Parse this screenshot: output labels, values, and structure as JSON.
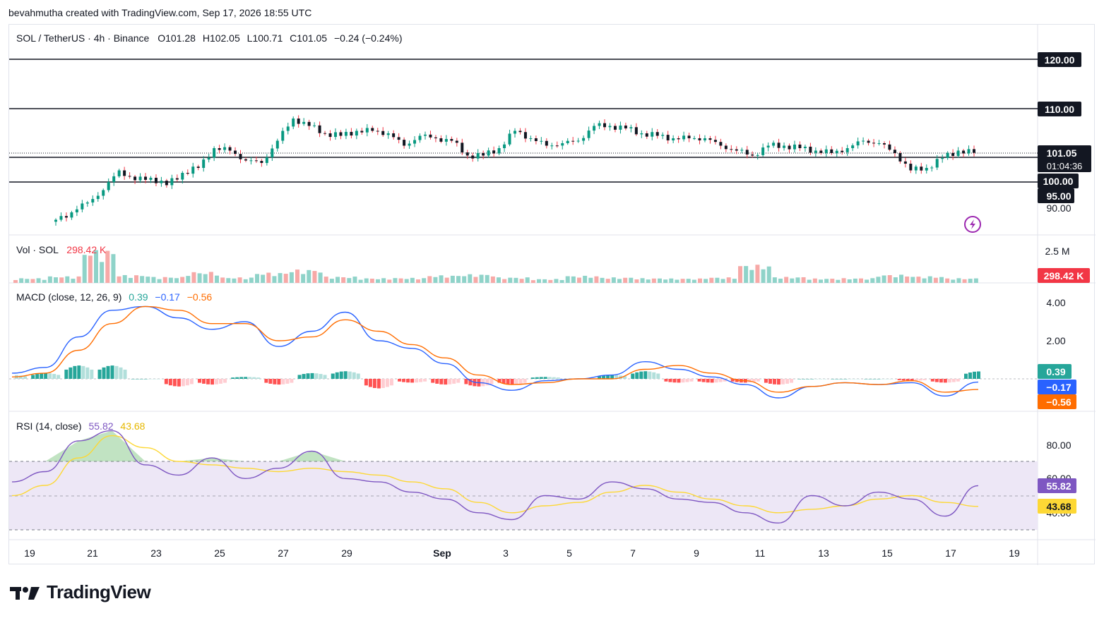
{
  "attribution": "bevahmutha created with TradingView.com, Sep 17, 2026 18:55 UTC",
  "brand": {
    "name": "TradingView"
  },
  "main_legend": {
    "symbol": "SOL / TetherUS · 4h · Binance",
    "open": "O101.28",
    "high": "H102.05",
    "low": "L100.71",
    "close": "C101.05",
    "change": "−0.24 (−0.24%)"
  },
  "price_axis": {
    "labels": [
      "120.00",
      "110.00",
      "101.05",
      "01:04:36",
      "100.00",
      "95.00",
      "90.00"
    ]
  },
  "volume_pane": {
    "title": "Vol · SOL",
    "value": "298.42 K",
    "axis_label": "2.5 M",
    "last_badge": "298.42 K"
  },
  "macd_pane": {
    "title": "MACD (close, 12, 26, 9)",
    "hist": "0.39",
    "macd": "−0.17",
    "signal": "−0.56",
    "axis_labels": [
      "4.00",
      "2.00"
    ],
    "badges": [
      "0.39",
      "−0.17",
      "−0.56"
    ]
  },
  "rsi_pane": {
    "title": "RSI (14, close)",
    "rsi": "55.82",
    "ma": "43.68",
    "axis_labels": [
      "80.00",
      "60.00",
      "40.00"
    ],
    "badges": [
      "55.82",
      "43.68"
    ]
  },
  "time_axis": {
    "labels": [
      "19",
      "21",
      "23",
      "25",
      "27",
      "29",
      "Sep",
      "3",
      "5",
      "7",
      "9",
      "11",
      "13",
      "15",
      "17",
      "19"
    ]
  },
  "colors": {
    "up": "#089981",
    "down": "#f23645",
    "vol_up": "#8fd3c9",
    "vol_down": "#f7a9a7",
    "macd": "#2962ff",
    "signal": "#ff6d00",
    "rsi": "#7e57c2",
    "rsi_ma": "#fdd835",
    "level": "#131722",
    "rsi_band": "#ede7f6"
  },
  "chart_data": [
    {
      "type": "candlestick",
      "title": "SOL / TetherUS · 4h · Binance",
      "x_range": [
        "Aug 19",
        "Sep 19"
      ],
      "ylim": [
        88,
        124
      ],
      "horizontal_levels": [
        120,
        110,
        101,
        96
      ],
      "last": {
        "open": 101.28,
        "high": 102.05,
        "low": 100.71,
        "close": 101.05
      },
      "close_series": [
        {
          "x": "Aug 20",
          "y": 87.5
        },
        {
          "x": "Aug 20 12h",
          "y": 89.0
        },
        {
          "x": "Aug 21",
          "y": 91.0
        },
        {
          "x": "Aug 21 12h",
          "y": 93.5
        },
        {
          "x": "Aug 22",
          "y": 97.5
        },
        {
          "x": "Aug 22 12h",
          "y": 95.5
        },
        {
          "x": "Aug 23",
          "y": 96.0
        },
        {
          "x": "Aug 23 12h",
          "y": 94.5
        },
        {
          "x": "Aug 24",
          "y": 97.0
        },
        {
          "x": "Aug 24 12h",
          "y": 98.0
        },
        {
          "x": "Aug 25",
          "y": 102.0
        },
        {
          "x": "Aug 25 12h",
          "y": 101.5
        },
        {
          "x": "Aug 26",
          "y": 99.5
        },
        {
          "x": "Aug 26 12h",
          "y": 99.0
        },
        {
          "x": "Aug 27",
          "y": 103.5
        },
        {
          "x": "Aug 27 12h",
          "y": 108.0
        },
        {
          "x": "Aug 28",
          "y": 106.5
        },
        {
          "x": "Aug 28 12h",
          "y": 105.0
        },
        {
          "x": "Aug 29",
          "y": 104.5
        },
        {
          "x": "Aug 29 12h",
          "y": 105.5
        },
        {
          "x": "Aug 30",
          "y": 105.5
        },
        {
          "x": "Aug 30 12h",
          "y": 105.0
        },
        {
          "x": "Aug 31",
          "y": 102.5
        },
        {
          "x": "Aug 31 12h",
          "y": 104.5
        },
        {
          "x": "Sep 1",
          "y": 104.0
        },
        {
          "x": "Sep 1 12h",
          "y": 103.5
        },
        {
          "x": "Sep 2",
          "y": 100.5
        },
        {
          "x": "Sep 2 12h",
          "y": 100.5
        },
        {
          "x": "Sep 3",
          "y": 102.0
        },
        {
          "x": "Sep 3 12h",
          "y": 105.5
        },
        {
          "x": "Sep 4",
          "y": 104.0
        },
        {
          "x": "Sep 4 12h",
          "y": 102.5
        },
        {
          "x": "Sep 5",
          "y": 103.0
        },
        {
          "x": "Sep 5 12h",
          "y": 103.5
        },
        {
          "x": "Sep 6",
          "y": 106.5
        },
        {
          "x": "Sep 6 12h",
          "y": 106.5
        },
        {
          "x": "Sep 7",
          "y": 106.0
        },
        {
          "x": "Sep 7 12h",
          "y": 105.0
        },
        {
          "x": "Sep 8",
          "y": 104.5
        },
        {
          "x": "Sep 8 12h",
          "y": 104.0
        },
        {
          "x": "Sep 9",
          "y": 104.0
        },
        {
          "x": "Sep 9 12h",
          "y": 104.0
        },
        {
          "x": "Sep 10",
          "y": 102.5
        },
        {
          "x": "Sep 10 12h",
          "y": 101.5
        },
        {
          "x": "Sep 11",
          "y": 100.5
        },
        {
          "x": "Sep 11 12h",
          "y": 102.5
        },
        {
          "x": "Sep 12",
          "y": 102.5
        },
        {
          "x": "Sep 12 12h",
          "y": 102.0
        },
        {
          "x": "Sep 13",
          "y": 101.5
        },
        {
          "x": "Sep 13 12h",
          "y": 101.0
        },
        {
          "x": "Sep 14",
          "y": 102.0
        },
        {
          "x": "Sep 14 12h",
          "y": 103.5
        },
        {
          "x": "Sep 15",
          "y": 103.0
        },
        {
          "x": "Sep 15 12h",
          "y": 101.0
        },
        {
          "x": "Sep 16",
          "y": 97.5
        },
        {
          "x": "Sep 16 12h",
          "y": 98.0
        },
        {
          "x": "Sep 17",
          "y": 100.0
        },
        {
          "x": "Sep 17 12h",
          "y": 101.5
        },
        {
          "x": "Sep 17 19h",
          "y": 101.05
        }
      ]
    },
    {
      "type": "bar",
      "title": "Vol · SOL",
      "ylim": [
        0,
        2500000
      ],
      "last_value": 298420,
      "values": [
        {
          "x": "Aug 20",
          "y": 300000
        },
        {
          "x": "Aug 21",
          "y": 420000
        },
        {
          "x": "Aug 22",
          "y": 2100000
        },
        {
          "x": "Aug 23",
          "y": 500000
        },
        {
          "x": "Aug 24",
          "y": 380000
        },
        {
          "x": "Aug 25",
          "y": 700000
        },
        {
          "x": "Aug 26",
          "y": 350000
        },
        {
          "x": "Aug 27",
          "y": 650000
        },
        {
          "x": "Aug 28",
          "y": 850000
        },
        {
          "x": "Aug 29",
          "y": 400000
        },
        {
          "x": "Aug 30",
          "y": 300000
        },
        {
          "x": "Sep 1",
          "y": 320000
        },
        {
          "x": "Sep 2",
          "y": 480000
        },
        {
          "x": "Sep 3",
          "y": 550000
        },
        {
          "x": "Sep 4",
          "y": 350000
        },
        {
          "x": "Sep 5",
          "y": 250000
        },
        {
          "x": "Sep 6",
          "y": 450000
        },
        {
          "x": "Sep 7",
          "y": 350000
        },
        {
          "x": "Sep 8",
          "y": 300000
        },
        {
          "x": "Sep 9",
          "y": 280000
        },
        {
          "x": "Sep 10",
          "y": 350000
        },
        {
          "x": "Sep 11",
          "y": 1150000
        },
        {
          "x": "Sep 12",
          "y": 380000
        },
        {
          "x": "Sep 13",
          "y": 280000
        },
        {
          "x": "Sep 14",
          "y": 300000
        },
        {
          "x": "Sep 15",
          "y": 520000
        },
        {
          "x": "Sep 16",
          "y": 420000
        },
        {
          "x": "Sep 17",
          "y": 298420
        }
      ]
    },
    {
      "type": "line",
      "title": "MACD (close, 12, 26, 9)",
      "ylim": [
        -1.5,
        5.0
      ],
      "x": [
        "Aug 19",
        "Aug 20",
        "Aug 21",
        "Aug 22",
        "Aug 23",
        "Aug 24",
        "Aug 25",
        "Aug 26",
        "Aug 27",
        "Aug 28",
        "Aug 29",
        "Aug 30",
        "Aug 31",
        "Sep 1",
        "Sep 2",
        "Sep 3",
        "Sep 4",
        "Sep 5",
        "Sep 6",
        "Sep 7",
        "Sep 8",
        "Sep 9",
        "Sep 10",
        "Sep 11",
        "Sep 12",
        "Sep 13",
        "Sep 14",
        "Sep 15",
        "Sep 16",
        "Sep 17"
      ],
      "series": [
        {
          "name": "MACD",
          "values": [
            0.3,
            0.6,
            2.2,
            3.6,
            3.8,
            3.2,
            2.6,
            3.0,
            1.7,
            2.5,
            3.5,
            2.0,
            1.6,
            0.8,
            -0.2,
            -0.6,
            -0.1,
            0.0,
            0.2,
            0.9,
            0.5,
            0.1,
            -0.3,
            -1.0,
            -0.4,
            -0.2,
            -0.3,
            -0.2,
            -0.9,
            -0.17
          ]
        },
        {
          "name": "Signal",
          "values": [
            0.1,
            0.3,
            1.5,
            2.9,
            3.8,
            3.6,
            2.9,
            2.9,
            2.0,
            2.2,
            3.1,
            2.5,
            1.8,
            1.1,
            0.2,
            -0.3,
            -0.2,
            0.0,
            0.0,
            0.5,
            0.7,
            0.3,
            -0.1,
            -0.7,
            -0.4,
            -0.2,
            -0.3,
            -0.1,
            -0.7,
            -0.56
          ]
        },
        {
          "name": "Histogram",
          "values": [
            0.2,
            0.3,
            0.7,
            0.7,
            0.0,
            -0.4,
            -0.3,
            0.1,
            -0.3,
            0.3,
            0.4,
            -0.5,
            -0.2,
            -0.3,
            -0.4,
            -0.3,
            0.1,
            0.0,
            0.2,
            0.4,
            -0.2,
            -0.2,
            -0.2,
            -0.3,
            0.0,
            0.0,
            0.0,
            -0.1,
            -0.2,
            0.39
          ]
        }
      ]
    },
    {
      "type": "line",
      "title": "RSI (14, close)",
      "ylim": [
        25,
        95
      ],
      "bands": [
        70,
        50,
        30
      ],
      "x": [
        "Aug 19",
        "Aug 20",
        "Aug 21",
        "Aug 22",
        "Aug 23",
        "Aug 24",
        "Aug 25",
        "Aug 26",
        "Aug 27",
        "Aug 28",
        "Aug 29",
        "Aug 30",
        "Aug 31",
        "Sep 1",
        "Sep 2",
        "Sep 3",
        "Sep 4",
        "Sep 5",
        "Sep 6",
        "Sep 7",
        "Sep 8",
        "Sep 9",
        "Sep 10",
        "Sep 11",
        "Sep 12",
        "Sep 13",
        "Sep 14",
        "Sep 15",
        "Sep 16",
        "Sep 17"
      ],
      "series": [
        {
          "name": "RSI",
          "values": [
            58,
            64,
            82,
            88,
            68,
            62,
            72,
            60,
            66,
            76,
            60,
            58,
            52,
            48,
            40,
            36,
            50,
            48,
            58,
            54,
            48,
            46,
            40,
            34,
            50,
            44,
            52,
            48,
            38,
            55.82
          ]
        },
        {
          "name": "RSI-based MA",
          "values": [
            50,
            56,
            72,
            85,
            78,
            70,
            68,
            66,
            64,
            66,
            64,
            62,
            58,
            54,
            46,
            40,
            44,
            46,
            52,
            56,
            52,
            48,
            44,
            40,
            42,
            44,
            48,
            50,
            46,
            43.68
          ]
        }
      ]
    }
  ]
}
